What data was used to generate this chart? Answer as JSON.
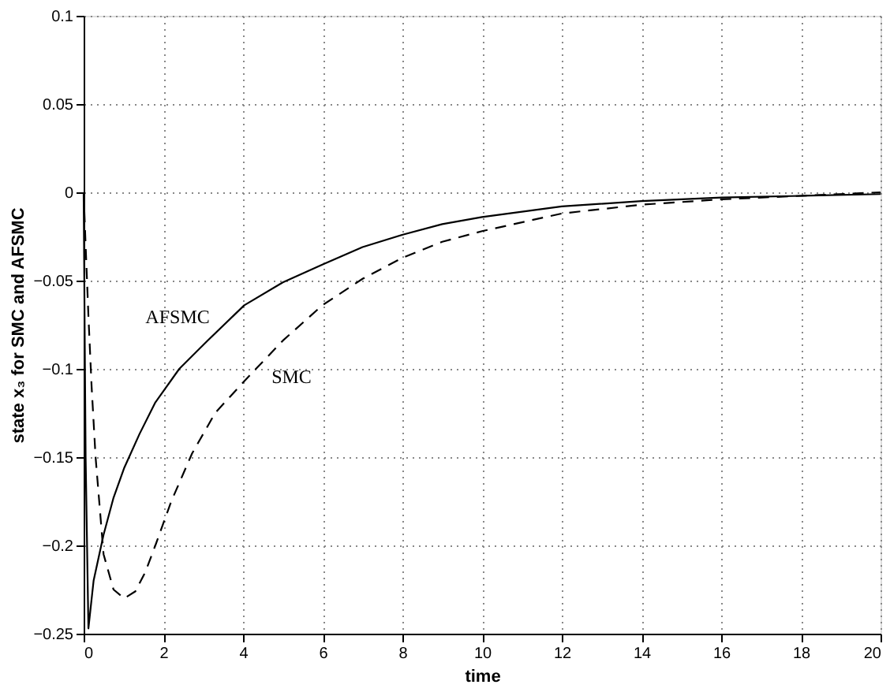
{
  "chart_data": {
    "type": "line",
    "xlabel": "time",
    "ylabel": "state x₃ for SMC and AFSMC",
    "xlim": [
      0,
      20
    ],
    "ylim": [
      -0.25,
      0.1
    ],
    "xticks": [
      0,
      2,
      4,
      6,
      8,
      10,
      12,
      14,
      16,
      18,
      20
    ],
    "yticks": [
      -0.25,
      -0.2,
      -0.15,
      -0.1,
      -0.05,
      0,
      0.05,
      0.1
    ],
    "grid": true,
    "series": [
      {
        "name": "AFSMC",
        "color": "#000000",
        "line_style": "solid",
        "x": [
          0,
          0.05,
          0.12,
          0.25,
          0.5,
          0.75,
          1.02,
          1.4,
          1.8,
          2.4,
          3.11,
          4.03,
          5,
          5.99,
          7,
          8.01,
          9,
          10,
          12,
          14,
          16,
          18,
          20
        ],
        "values": [
          0,
          -0.15,
          -0.247,
          -0.22,
          -0.194,
          -0.173,
          -0.156,
          -0.137,
          -0.119,
          -0.1,
          -0.084,
          -0.064,
          -0.051,
          -0.041,
          -0.031,
          -0.024,
          -0.018,
          -0.014,
          -0.008,
          -0.005,
          -0.003,
          -0.002,
          -0.001
        ]
      },
      {
        "name": "SMC",
        "color": "#000000",
        "line_style": "dashed",
        "x": [
          0,
          0.05,
          0.12,
          0.2,
          0.3,
          0.5,
          0.75,
          1.02,
          1.3,
          1.55,
          1.8,
          2.2,
          2.72,
          3.3,
          4.03,
          5,
          5.99,
          7,
          8.01,
          9,
          10,
          12,
          14,
          16,
          18,
          20
        ],
        "values": [
          0,
          -0.03,
          -0.07,
          -0.11,
          -0.15,
          -0.205,
          -0.225,
          -0.23,
          -0.226,
          -0.215,
          -0.2,
          -0.175,
          -0.148,
          -0.125,
          -0.107,
          -0.084,
          -0.064,
          -0.049,
          -0.037,
          -0.028,
          -0.022,
          -0.012,
          -0.007,
          -0.004,
          -0.002,
          0
        ]
      }
    ]
  }
}
